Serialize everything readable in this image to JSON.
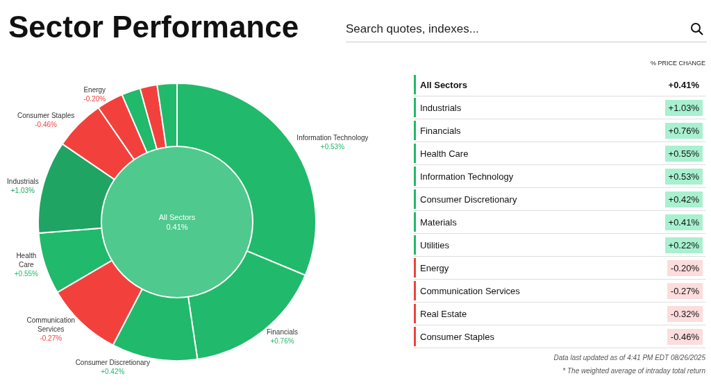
{
  "chart_data": [
    {
      "type": "donut",
      "title": "Sector Performance",
      "categories": [
        "Information Technology\n+0.53%",
        "Financials\n+0.76%",
        "Consumer Discretionary\n+0.42%",
        "Communication\nServices\n-0.27%",
        "Health\nCare\n+0.55%",
        "Industrials\n+1.03%",
        "Consumer Staples\n-0.46%",
        "Energy\n-0.20%",
        null,
        null,
        null
      ],
      "values": [
        31.3,
        16.4,
        10,
        8.9,
        7.2,
        10.8,
        5.9,
        3.1,
        2.2,
        2,
        2.3
      ],
      "colors": [
        "#21b96b",
        "#21b96b",
        "#21b96b",
        "#f2413c",
        "#21b96b",
        "#1fa463",
        "#f2413c",
        "#f2413c",
        "#21b96b",
        "#f2413c",
        "#21b96b"
      ],
      "annotations": [
        "All Sectors",
        "0.41%",
        "Search quotes, indexes..."
      ]
    },
    {
      "type": "other",
      "categories": [
        "All Sectors",
        "Industrials",
        "Financials",
        "Health Care",
        "Information Technology",
        "Consumer Discretionary",
        "Materials",
        "Utilities",
        "Energy",
        "Communication Services",
        "Real Estate",
        "Consumer Staples"
      ],
      "values": [
        0.41,
        1.03,
        0.76,
        0.55,
        0.53,
        0.42,
        0.41,
        0.22,
        -0.2,
        -0.27,
        -0.32,
        -0.46
      ],
      "value_labels": [
        "+0.41%",
        "+1.03%",
        "+0.76%",
        "+0.55%",
        "+0.53%",
        "+0.42%",
        "+0.41%",
        "+0.22%",
        "-0.20%",
        "-0.27%",
        "-0.32%",
        "-0.46%"
      ],
      "colors": [
        null,
        "#a8f0d0",
        "#a8f0d0",
        "#a8f0d0",
        "#a8f0d0",
        "#a8f0d0",
        "#a8f0d0",
        "#a8f0d0",
        "#fcdcdc",
        "#fcdcdc",
        "#fcdcdc",
        "#fcdcdc"
      ],
      "annotations": [
        "% PRICE CHANGE",
        "Data last updated as of 4:41 PM EDT 08/26/2025",
        "* The weighted average of intraday total return"
      ]
    }
  ]
}
